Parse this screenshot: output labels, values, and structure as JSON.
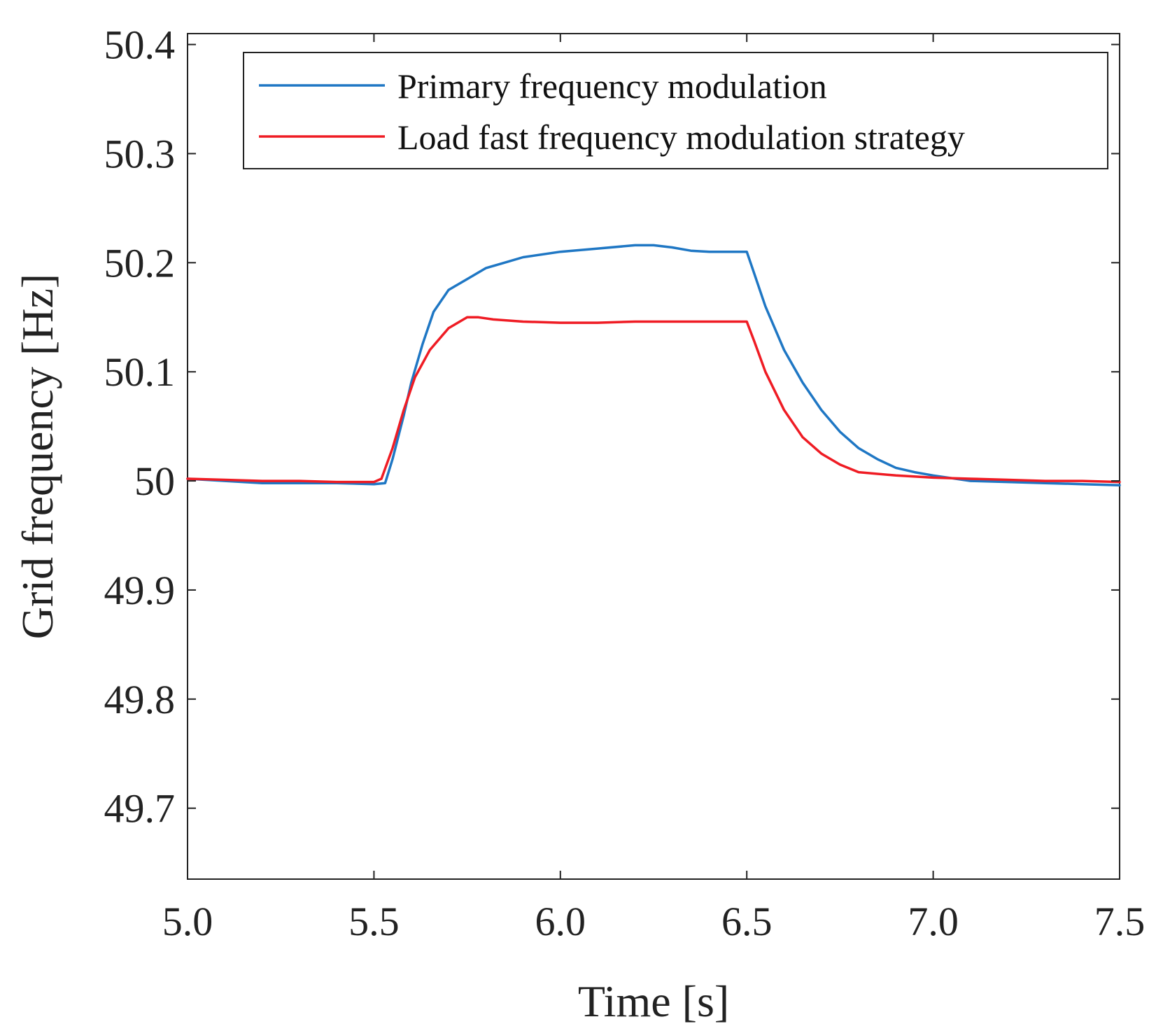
{
  "chart_data": {
    "type": "line",
    "title": "",
    "xlabel": "Time [s]",
    "ylabel": "Grid frequency [Hz]",
    "xlim": [
      5.0,
      7.5
    ],
    "ylim": [
      49.635,
      50.41
    ],
    "xticks": [
      5.0,
      5.5,
      6.0,
      6.5,
      7.0,
      7.5
    ],
    "xtick_labels": [
      "5.0",
      "5.5",
      "6.0",
      "6.5",
      "7.0",
      "7.5"
    ],
    "yticks": [
      49.7,
      49.8,
      49.9,
      50.0,
      50.1,
      50.2,
      50.3,
      50.4
    ],
    "ytick_labels": [
      "49.7",
      "49.8",
      "49.9",
      "50",
      "50.1",
      "50.2",
      "50.3",
      "50.4"
    ],
    "grid": false,
    "legend_position": "top-right",
    "series": [
      {
        "name": "Primary frequency modulation",
        "color": "#1f77c4",
        "points": [
          [
            5.0,
            50.002
          ],
          [
            5.1,
            50.0
          ],
          [
            5.2,
            49.998
          ],
          [
            5.3,
            49.998
          ],
          [
            5.4,
            49.998
          ],
          [
            5.5,
            49.997
          ],
          [
            5.53,
            49.998
          ],
          [
            5.55,
            50.02
          ],
          [
            5.58,
            50.06
          ],
          [
            5.6,
            50.09
          ],
          [
            5.63,
            50.125
          ],
          [
            5.66,
            50.155
          ],
          [
            5.7,
            50.175
          ],
          [
            5.75,
            50.185
          ],
          [
            5.8,
            50.195
          ],
          [
            5.85,
            50.2
          ],
          [
            5.9,
            50.205
          ],
          [
            6.0,
            50.21
          ],
          [
            6.1,
            50.213
          ],
          [
            6.2,
            50.216
          ],
          [
            6.25,
            50.216
          ],
          [
            6.3,
            50.214
          ],
          [
            6.35,
            50.211
          ],
          [
            6.4,
            50.21
          ],
          [
            6.45,
            50.21
          ],
          [
            6.5,
            50.21
          ],
          [
            6.52,
            50.19
          ],
          [
            6.55,
            50.16
          ],
          [
            6.6,
            50.12
          ],
          [
            6.65,
            50.09
          ],
          [
            6.7,
            50.065
          ],
          [
            6.75,
            50.045
          ],
          [
            6.8,
            50.03
          ],
          [
            6.85,
            50.02
          ],
          [
            6.9,
            50.012
          ],
          [
            6.95,
            50.008
          ],
          [
            7.0,
            50.005
          ],
          [
            7.1,
            50.0
          ],
          [
            7.2,
            49.999
          ],
          [
            7.3,
            49.998
          ],
          [
            7.4,
            49.997
          ],
          [
            7.5,
            49.996
          ]
        ]
      },
      {
        "name": "Load fast frequency modulation strategy",
        "color": "#ef1c24",
        "points": [
          [
            5.0,
            50.002
          ],
          [
            5.1,
            50.001
          ],
          [
            5.2,
            50.0
          ],
          [
            5.3,
            50.0
          ],
          [
            5.4,
            49.999
          ],
          [
            5.5,
            49.999
          ],
          [
            5.52,
            50.002
          ],
          [
            5.55,
            50.03
          ],
          [
            5.58,
            50.065
          ],
          [
            5.61,
            50.095
          ],
          [
            5.65,
            50.12
          ],
          [
            5.7,
            50.14
          ],
          [
            5.75,
            50.15
          ],
          [
            5.78,
            50.15
          ],
          [
            5.82,
            50.148
          ],
          [
            5.9,
            50.146
          ],
          [
            6.0,
            50.145
          ],
          [
            6.1,
            50.145
          ],
          [
            6.2,
            50.146
          ],
          [
            6.3,
            50.146
          ],
          [
            6.4,
            50.146
          ],
          [
            6.5,
            50.146
          ],
          [
            6.52,
            50.128
          ],
          [
            6.55,
            50.1
          ],
          [
            6.6,
            50.065
          ],
          [
            6.65,
            50.04
          ],
          [
            6.7,
            50.025
          ],
          [
            6.75,
            50.015
          ],
          [
            6.8,
            50.008
          ],
          [
            6.9,
            50.005
          ],
          [
            7.0,
            50.003
          ],
          [
            7.1,
            50.002
          ],
          [
            7.2,
            50.001
          ],
          [
            7.3,
            50.0
          ],
          [
            7.4,
            50.0
          ],
          [
            7.5,
            49.999
          ]
        ]
      }
    ]
  }
}
